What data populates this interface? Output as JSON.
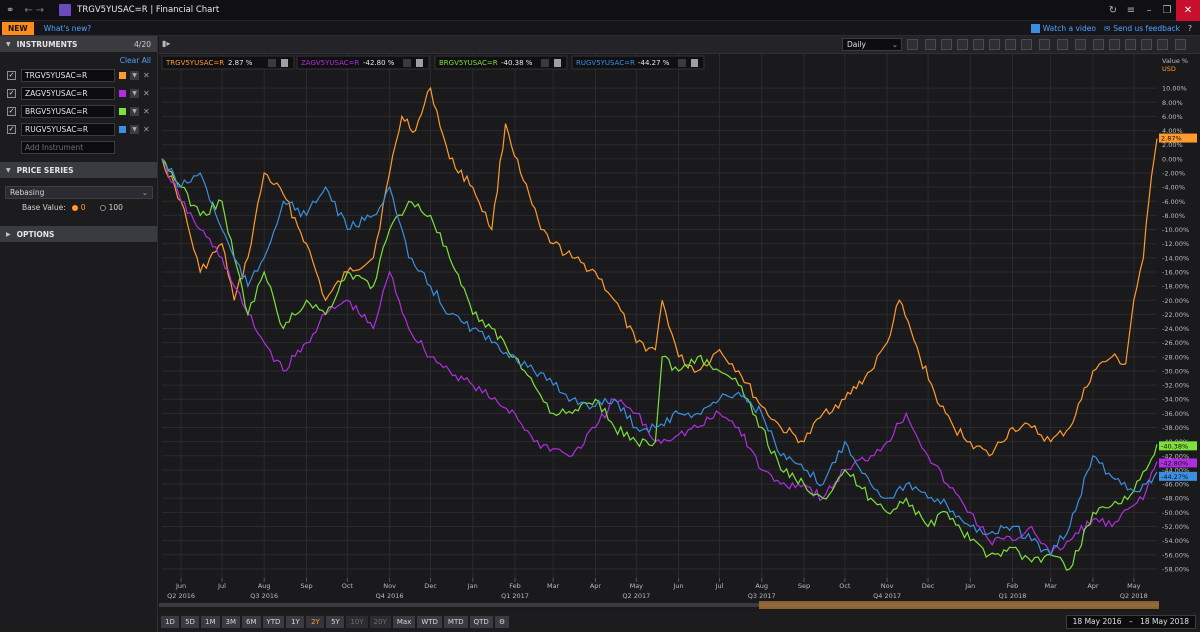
{
  "titlebar": {
    "title": "TRGV5YUSAC=R | Financial Chart"
  },
  "bar2": {
    "new_label": "NEW",
    "whats_new": "What's new?",
    "watch_video": "Watch a video",
    "feedback": "Send us feedback"
  },
  "sidebar": {
    "instruments_label": "INSTRUMENTS",
    "instruments_count": "4/20",
    "clear_all": "Clear All",
    "instruments": [
      {
        "ric": "TRGV5YUSAC=R",
        "color": "#ff9a2e"
      },
      {
        "ric": "ZAGV5YUSAC=R",
        "color": "#b02ee0"
      },
      {
        "ric": "BRGV5YUSAC=R",
        "color": "#7ee03a"
      },
      {
        "ric": "RUGV5YUSAC=R",
        "color": "#3a8fe0"
      }
    ],
    "add_placeholder": "Add Instrument",
    "price_series_label": "PRICE SERIES",
    "rebasing": "Rebasing",
    "base_value_label": "Base Value:",
    "base_opt_0": "0",
    "base_opt_100": "100",
    "options_label": "OPTIONS"
  },
  "toolbar": {
    "interval": "Daily"
  },
  "range_buttons": [
    "1D",
    "5D",
    "1M",
    "3M",
    "6M",
    "YTD",
    "1Y",
    "2Y",
    "5Y",
    "10Y",
    "20Y",
    "Max",
    "WTD",
    "MTD",
    "QTD"
  ],
  "range_active": "2Y",
  "range_disabled": [
    "10Y",
    "20Y"
  ],
  "date_from": "18 May 2016",
  "date_to": "18 May 2018",
  "chart_data": {
    "type": "line",
    "y_unit_label": "Value %",
    "currency_label": "USD",
    "ylim": [
      -59,
      12
    ],
    "y_ticks": [
      10,
      8,
      6,
      4,
      2,
      0,
      -2,
      -4,
      -6,
      -8,
      -10,
      -12,
      -14,
      -16,
      -18,
      -20,
      -22,
      -24,
      -26,
      -28,
      -30,
      -32,
      -34,
      -36,
      -38,
      -40,
      -42,
      -44,
      -46,
      -48,
      -50,
      -52,
      -54,
      -56,
      -58
    ],
    "x_months": [
      "Jun",
      "Jul",
      "Aug",
      "Sep",
      "Oct",
      "Nov",
      "Dec",
      "Jan",
      "Feb",
      "Mar",
      "Apr",
      "May",
      "Jun",
      "Jul",
      "Aug",
      "Sep",
      "Oct",
      "Nov",
      "Dec",
      "Jan",
      "Feb",
      "Mar",
      "Apr",
      "May"
    ],
    "quarters": [
      {
        "label": "Q2 2016",
        "month_index": 0
      },
      {
        "label": "Q3 2016",
        "month_index": 2
      },
      {
        "label": "Q4 2016",
        "month_index": 5
      },
      {
        "label": "Q1 2017",
        "month_index": 8
      },
      {
        "label": "Q2 2017",
        "month_index": 11
      },
      {
        "label": "Q3 2017",
        "month_index": 14
      },
      {
        "label": "Q4 2017",
        "month_index": 17
      },
      {
        "label": "Q1 2018",
        "month_index": 20
      },
      {
        "label": "Q2 2018",
        "month_index": 23
      }
    ],
    "x_start": "2016-05-18",
    "x_end": "2018-05-18",
    "series": [
      {
        "name": "TRGV5YUSAC=R",
        "legend_value": "2.87 %",
        "last_label": "2.87%",
        "color": "#ff9a2e",
        "points": [
          [
            "2016-05-18",
            0
          ],
          [
            "2016-06-01",
            -6
          ],
          [
            "2016-06-15",
            -16
          ],
          [
            "2016-07-01",
            -12
          ],
          [
            "2016-07-10",
            -20
          ],
          [
            "2016-07-20",
            -14
          ],
          [
            "2016-08-01",
            -2
          ],
          [
            "2016-08-15",
            -5
          ],
          [
            "2016-09-01",
            -12
          ],
          [
            "2016-09-15",
            -20
          ],
          [
            "2016-10-01",
            -16
          ],
          [
            "2016-10-20",
            -14
          ],
          [
            "2016-11-01",
            -2
          ],
          [
            "2016-11-10",
            6
          ],
          [
            "2016-11-20",
            4
          ],
          [
            "2016-12-01",
            10
          ],
          [
            "2016-12-15",
            0
          ],
          [
            "2017-01-01",
            -4
          ],
          [
            "2017-01-15",
            -10
          ],
          [
            "2017-01-25",
            5
          ],
          [
            "2017-02-05",
            -2
          ],
          [
            "2017-02-20",
            -10
          ],
          [
            "2017-03-01",
            -12
          ],
          [
            "2017-03-15",
            -14
          ],
          [
            "2017-04-01",
            -16
          ],
          [
            "2017-04-15",
            -20
          ],
          [
            "2017-05-01",
            -26
          ],
          [
            "2017-05-15",
            -27
          ],
          [
            "2017-05-20",
            -20
          ],
          [
            "2017-06-01",
            -28
          ],
          [
            "2017-06-15",
            -30
          ],
          [
            "2017-07-01",
            -27
          ],
          [
            "2017-07-15",
            -30
          ],
          [
            "2017-08-01",
            -35
          ],
          [
            "2017-08-15",
            -38
          ],
          [
            "2017-09-01",
            -40
          ],
          [
            "2017-09-15",
            -36
          ],
          [
            "2017-10-01",
            -34
          ],
          [
            "2017-10-20",
            -30
          ],
          [
            "2017-11-01",
            -26
          ],
          [
            "2017-11-10",
            -20
          ],
          [
            "2017-11-25",
            -28
          ],
          [
            "2017-12-10",
            -35
          ],
          [
            "2017-12-20",
            -38
          ],
          [
            "2018-01-01",
            -40
          ],
          [
            "2018-01-15",
            -42
          ],
          [
            "2018-02-01",
            -38
          ],
          [
            "2018-02-15",
            -38
          ],
          [
            "2018-03-01",
            -40
          ],
          [
            "2018-03-15",
            -38
          ],
          [
            "2018-04-01",
            -30
          ],
          [
            "2018-04-15",
            -28
          ],
          [
            "2018-04-25",
            -29
          ],
          [
            "2018-05-01",
            -20
          ],
          [
            "2018-05-08",
            -14
          ],
          [
            "2018-05-12",
            -6
          ],
          [
            "2018-05-18",
            2.87
          ]
        ]
      },
      {
        "name": "ZAGV5YUSAC=R",
        "legend_value": "-42.80 %",
        "last_label": "-42.80%",
        "color": "#b02ee0",
        "points": [
          [
            "2016-05-18",
            0
          ],
          [
            "2016-06-01",
            -6
          ],
          [
            "2016-06-15",
            -10
          ],
          [
            "2016-07-01",
            -14
          ],
          [
            "2016-07-10",
            -18
          ],
          [
            "2016-07-20",
            -22
          ],
          [
            "2016-08-01",
            -26
          ],
          [
            "2016-08-15",
            -30
          ],
          [
            "2016-09-01",
            -26
          ],
          [
            "2016-09-15",
            -22
          ],
          [
            "2016-10-01",
            -20
          ],
          [
            "2016-10-20",
            -24
          ],
          [
            "2016-11-01",
            -16
          ],
          [
            "2016-11-15",
            -24
          ],
          [
            "2016-12-01",
            -28
          ],
          [
            "2016-12-15",
            -30
          ],
          [
            "2017-01-01",
            -32
          ],
          [
            "2017-01-15",
            -34
          ],
          [
            "2017-02-01",
            -36
          ],
          [
            "2017-02-15",
            -40
          ],
          [
            "2017-03-01",
            -41
          ],
          [
            "2017-03-15",
            -42
          ],
          [
            "2017-04-01",
            -38
          ],
          [
            "2017-04-15",
            -34
          ],
          [
            "2017-05-01",
            -36
          ],
          [
            "2017-05-15",
            -40
          ],
          [
            "2017-06-01",
            -39
          ],
          [
            "2017-06-15",
            -38
          ],
          [
            "2017-07-01",
            -36
          ],
          [
            "2017-07-15",
            -38
          ],
          [
            "2017-08-01",
            -44
          ],
          [
            "2017-08-15",
            -46
          ],
          [
            "2017-09-01",
            -46
          ],
          [
            "2017-09-15",
            -48
          ],
          [
            "2017-10-01",
            -44
          ],
          [
            "2017-10-20",
            -42
          ],
          [
            "2017-11-01",
            -40
          ],
          [
            "2017-11-15",
            -36
          ],
          [
            "2017-12-01",
            -42
          ],
          [
            "2017-12-15",
            -46
          ],
          [
            "2018-01-01",
            -50
          ],
          [
            "2018-01-15",
            -54
          ],
          [
            "2018-02-01",
            -54
          ],
          [
            "2018-02-15",
            -52
          ],
          [
            "2018-03-01",
            -56
          ],
          [
            "2018-03-15",
            -54
          ],
          [
            "2018-04-01",
            -51
          ],
          [
            "2018-04-15",
            -52
          ],
          [
            "2018-05-01",
            -49
          ],
          [
            "2018-05-10",
            -47
          ],
          [
            "2018-05-18",
            -42.8
          ]
        ]
      },
      {
        "name": "BRGV5YUSAC=R",
        "legend_value": "-40.38 %",
        "last_label": "-40.38%",
        "color": "#7ee03a",
        "points": [
          [
            "2016-05-18",
            0
          ],
          [
            "2016-06-01",
            -4
          ],
          [
            "2016-06-15",
            -8
          ],
          [
            "2016-07-01",
            -6
          ],
          [
            "2016-07-10",
            -14
          ],
          [
            "2016-07-20",
            -22
          ],
          [
            "2016-08-01",
            -16
          ],
          [
            "2016-08-15",
            -24
          ],
          [
            "2016-09-01",
            -20
          ],
          [
            "2016-09-15",
            -22
          ],
          [
            "2016-10-01",
            -16
          ],
          [
            "2016-10-20",
            -18
          ],
          [
            "2016-11-01",
            -10
          ],
          [
            "2016-11-15",
            -6
          ],
          [
            "2016-12-01",
            -8
          ],
          [
            "2016-12-15",
            -14
          ],
          [
            "2017-01-01",
            -22
          ],
          [
            "2017-01-15",
            -24
          ],
          [
            "2017-02-01",
            -28
          ],
          [
            "2017-02-15",
            -32
          ],
          [
            "2017-03-01",
            -36
          ],
          [
            "2017-03-15",
            -36
          ],
          [
            "2017-04-01",
            -34
          ],
          [
            "2017-04-15",
            -38
          ],
          [
            "2017-05-01",
            -40
          ],
          [
            "2017-05-15",
            -40
          ],
          [
            "2017-05-20",
            -28
          ],
          [
            "2017-06-01",
            -30
          ],
          [
            "2017-06-15",
            -28
          ],
          [
            "2017-07-01",
            -30
          ],
          [
            "2017-07-15",
            -32
          ],
          [
            "2017-08-01",
            -38
          ],
          [
            "2017-08-15",
            -44
          ],
          [
            "2017-09-01",
            -46
          ],
          [
            "2017-09-15",
            -48
          ],
          [
            "2017-10-01",
            -44
          ],
          [
            "2017-10-20",
            -48
          ],
          [
            "2017-11-01",
            -50
          ],
          [
            "2017-11-15",
            -48
          ],
          [
            "2017-12-01",
            -52
          ],
          [
            "2017-12-15",
            -50
          ],
          [
            "2018-01-01",
            -54
          ],
          [
            "2018-01-15",
            -56
          ],
          [
            "2018-02-01",
            -55
          ],
          [
            "2018-02-15",
            -57
          ],
          [
            "2018-03-01",
            -56
          ],
          [
            "2018-03-15",
            -58
          ],
          [
            "2018-04-01",
            -50
          ],
          [
            "2018-04-15",
            -49
          ],
          [
            "2018-05-01",
            -47
          ],
          [
            "2018-05-10",
            -44
          ],
          [
            "2018-05-18",
            -40.38
          ]
        ]
      },
      {
        "name": "RUGV5YUSAC=R",
        "legend_value": "-44.27 %",
        "last_label": "-44.27%",
        "color": "#3a8fe0",
        "points": [
          [
            "2016-05-18",
            0
          ],
          [
            "2016-06-01",
            -4
          ],
          [
            "2016-06-15",
            -2
          ],
          [
            "2016-07-01",
            -10
          ],
          [
            "2016-07-10",
            -14
          ],
          [
            "2016-07-20",
            -18
          ],
          [
            "2016-08-01",
            -14
          ],
          [
            "2016-08-15",
            -6
          ],
          [
            "2016-09-01",
            -8
          ],
          [
            "2016-09-15",
            -4
          ],
          [
            "2016-10-01",
            -10
          ],
          [
            "2016-10-20",
            -8
          ],
          [
            "2016-11-01",
            -4
          ],
          [
            "2016-11-15",
            -14
          ],
          [
            "2016-12-01",
            -18
          ],
          [
            "2016-12-15",
            -22
          ],
          [
            "2017-01-01",
            -24
          ],
          [
            "2017-01-15",
            -26
          ],
          [
            "2017-02-01",
            -28
          ],
          [
            "2017-02-15",
            -30
          ],
          [
            "2017-03-01",
            -32
          ],
          [
            "2017-03-15",
            -34
          ],
          [
            "2017-04-01",
            -35
          ],
          [
            "2017-04-15",
            -34
          ],
          [
            "2017-05-01",
            -38
          ],
          [
            "2017-05-15",
            -38
          ],
          [
            "2017-06-01",
            -36
          ],
          [
            "2017-06-15",
            -36
          ],
          [
            "2017-07-01",
            -34
          ],
          [
            "2017-07-15",
            -33
          ],
          [
            "2017-08-01",
            -36
          ],
          [
            "2017-08-15",
            -42
          ],
          [
            "2017-09-01",
            -44
          ],
          [
            "2017-09-15",
            -46
          ],
          [
            "2017-10-01",
            -40
          ],
          [
            "2017-10-20",
            -46
          ],
          [
            "2017-11-01",
            -48
          ],
          [
            "2017-11-15",
            -46
          ],
          [
            "2017-12-01",
            -48
          ],
          [
            "2017-12-15",
            -49
          ],
          [
            "2018-01-01",
            -52
          ],
          [
            "2018-01-15",
            -53
          ],
          [
            "2018-02-01",
            -52
          ],
          [
            "2018-02-15",
            -54
          ],
          [
            "2018-03-01",
            -56
          ],
          [
            "2018-03-15",
            -52
          ],
          [
            "2018-04-01",
            -42
          ],
          [
            "2018-04-15",
            -45
          ],
          [
            "2018-05-01",
            -47
          ],
          [
            "2018-05-10",
            -46
          ],
          [
            "2018-05-18",
            -44.27
          ]
        ]
      }
    ]
  }
}
